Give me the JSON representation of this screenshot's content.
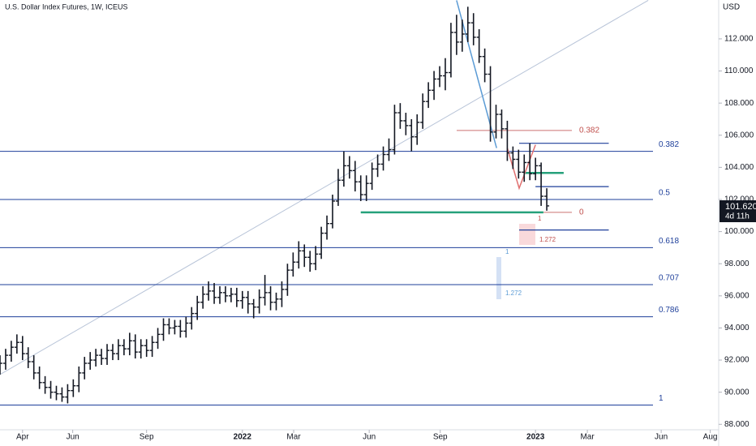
{
  "chart_data": {
    "type": "ohlc",
    "title": "U.S. Dollar Index Futures, 1W, ICEUS",
    "y_axis_label": "USD",
    "last_price": "101.620",
    "countdown": "4d 11h",
    "color": "#131722",
    "xlim": [
      0,
      127.5
    ],
    "ylim": [
      87.66,
      114.42
    ],
    "xticks": [
      {
        "value": 4.0,
        "label": "Apr"
      },
      {
        "value": 12.9,
        "label": "Jun"
      },
      {
        "value": 26.0,
        "label": "Sep"
      },
      {
        "value": 43.0,
        "label": "2022"
      },
      {
        "value": 52.1,
        "label": "Mar"
      },
      {
        "value": 65.5,
        "label": "Jun"
      },
      {
        "value": 78.1,
        "label": "Sep"
      },
      {
        "value": 95.0,
        "label": "2023"
      },
      {
        "value": 104.2,
        "label": "Mar"
      },
      {
        "value": 117.3,
        "label": "Jun"
      },
      {
        "value": 126.0,
        "label": "Aug"
      }
    ],
    "yticks": [
      {
        "value": 88,
        "label": "88.000"
      },
      {
        "value": 90,
        "label": "90.000"
      },
      {
        "value": 92,
        "label": "92.000"
      },
      {
        "value": 94,
        "label": "94.000"
      },
      {
        "value": 96,
        "label": "96.000"
      },
      {
        "value": 98,
        "label": "98.000"
      },
      {
        "value": 100,
        "label": "100.000"
      },
      {
        "value": 102,
        "label": "102.000"
      },
      {
        "value": 104,
        "label": "104.000"
      },
      {
        "value": 106,
        "label": "106.000"
      },
      {
        "value": 108,
        "label": "108.000"
      },
      {
        "value": 110,
        "label": "110.000"
      },
      {
        "value": 112,
        "label": "112.000"
      }
    ],
    "x": [
      0,
      1,
      2,
      3,
      4,
      5,
      6,
      7,
      8,
      9,
      10,
      11,
      12,
      13,
      14,
      15,
      16,
      17,
      18,
      19,
      20,
      21,
      22,
      23,
      24,
      25,
      26,
      27,
      28,
      29,
      30,
      31,
      32,
      33,
      34,
      35,
      36,
      37,
      38,
      39,
      40,
      41,
      42,
      43,
      44,
      45,
      46,
      47,
      48,
      49,
      50,
      51,
      52,
      53,
      54,
      55,
      56,
      57,
      58,
      59,
      60,
      61,
      62,
      63,
      64,
      65,
      66,
      67,
      68,
      69,
      70,
      71,
      72,
      73,
      74,
      75,
      76,
      77,
      78,
      79,
      80,
      81,
      82,
      83,
      84,
      85,
      86,
      87,
      88,
      89,
      90,
      91,
      92,
      93,
      94,
      95,
      96,
      97
    ],
    "open": [
      91.5,
      91.8,
      92.3,
      92.8,
      93.1,
      92.4,
      91.9,
      91.2,
      90.6,
      90.3,
      90.0,
      89.9,
      89.7,
      90.1,
      90.4,
      91.2,
      91.8,
      92.0,
      92.3,
      92.1,
      92.6,
      92.4,
      92.9,
      92.7,
      93.2,
      92.5,
      92.9,
      92.6,
      93.1,
      93.6,
      94.2,
      94.0,
      94.1,
      93.8,
      94.3,
      94.9,
      95.6,
      96.1,
      96.3,
      95.9,
      96.2,
      96.0,
      96.1,
      95.7,
      95.9,
      95.5,
      95.3,
      95.9,
      96.2,
      95.6,
      95.8,
      96.4,
      97.6,
      98.1,
      98.8,
      98.4,
      98.0,
      98.6,
      99.9,
      100.5,
      101.9,
      103.2,
      104.1,
      103.8,
      103.1,
      102.3,
      103.0,
      103.9,
      104.2,
      104.8,
      105.1,
      107.4,
      106.9,
      106.6,
      105.9,
      106.8,
      108.1,
      108.8,
      109.5,
      109.7,
      109.9,
      112.4,
      111.8,
      112.3,
      113.0,
      112.1,
      110.9,
      109.8,
      106.2,
      107.3,
      106.4,
      104.9,
      104.5,
      103.7,
      104.3,
      103.6,
      104.1,
      102.2
    ],
    "high": [
      92.3,
      92.7,
      93.2,
      93.6,
      93.5,
      92.8,
      92.3,
      91.6,
      91.0,
      90.7,
      90.4,
      90.3,
      90.5,
      90.8,
      91.6,
      92.2,
      92.5,
      92.7,
      92.7,
      93.0,
      93.0,
      93.3,
      93.3,
      93.7,
      93.6,
      93.3,
      93.3,
      93.5,
      94.0,
      94.6,
      94.6,
      94.5,
      94.5,
      94.7,
      95.3,
      96.0,
      96.6,
      96.9,
      96.8,
      96.6,
      96.6,
      96.5,
      96.5,
      96.3,
      96.3,
      95.8,
      96.4,
      97.3,
      96.6,
      96.2,
      96.9,
      98.0,
      98.7,
      99.4,
      99.2,
      98.8,
      99.1,
      100.3,
      101.0,
      102.3,
      103.9,
      105.0,
      104.7,
      104.4,
      103.5,
      103.5,
      104.3,
      104.8,
      105.3,
      105.8,
      107.9,
      108.0,
      107.4,
      107.0,
      107.3,
      108.6,
      109.3,
      110.0,
      110.3,
      110.8,
      113.0,
      113.5,
      113.2,
      114.0,
      113.6,
      112.6,
      111.4,
      110.3,
      107.9,
      107.6,
      106.9,
      105.3,
      105.1,
      104.8,
      105.5,
      104.6,
      104.3,
      102.7
    ],
    "low": [
      91.1,
      91.4,
      91.9,
      92.4,
      92.0,
      91.5,
      90.8,
      90.2,
      89.9,
      89.6,
      89.5,
      89.4,
      89.3,
      89.7,
      90.0,
      90.8,
      91.4,
      91.6,
      91.7,
      91.7,
      92.0,
      92.0,
      92.3,
      92.3,
      92.1,
      92.1,
      92.2,
      92.2,
      92.7,
      93.2,
      93.6,
      93.6,
      93.4,
      93.4,
      93.9,
      94.5,
      95.2,
      95.7,
      95.5,
      95.5,
      95.6,
      95.6,
      95.3,
      95.2,
      94.9,
      94.6,
      94.9,
      95.4,
      95.1,
      95.1,
      95.3,
      96.0,
      97.2,
      97.7,
      97.8,
      97.5,
      97.6,
      98.3,
      99.5,
      100.2,
      101.6,
      102.8,
      103.3,
      102.5,
      101.9,
      101.9,
      102.6,
      103.4,
      103.8,
      104.4,
      104.8,
      106.4,
      106.0,
      105.0,
      105.4,
      106.4,
      107.7,
      108.2,
      109.0,
      108.8,
      109.6,
      111.0,
      111.2,
      111.8,
      111.6,
      110.5,
      109.3,
      105.6,
      105.8,
      105.8,
      104.4,
      103.9,
      103.3,
      103.1,
      103.2,
      103.2,
      101.6,
      101.3
    ],
    "close": [
      91.8,
      92.3,
      92.8,
      93.1,
      92.4,
      91.9,
      91.2,
      90.6,
      90.3,
      90.0,
      89.9,
      89.7,
      90.1,
      90.4,
      91.2,
      91.8,
      92.0,
      92.3,
      92.1,
      92.6,
      92.4,
      92.9,
      92.7,
      93.2,
      92.5,
      92.9,
      92.6,
      93.1,
      93.6,
      94.2,
      94.0,
      94.1,
      93.8,
      94.3,
      94.9,
      95.6,
      96.1,
      96.3,
      95.9,
      96.2,
      96.0,
      96.1,
      95.7,
      95.9,
      95.5,
      95.3,
      95.9,
      96.2,
      95.6,
      95.8,
      96.4,
      97.6,
      98.1,
      98.8,
      98.4,
      98.0,
      98.6,
      99.9,
      100.5,
      101.9,
      103.2,
      104.1,
      103.8,
      103.1,
      102.3,
      103.0,
      103.9,
      104.2,
      104.8,
      105.1,
      107.4,
      106.9,
      106.6,
      105.9,
      106.8,
      108.1,
      108.8,
      109.5,
      109.7,
      109.9,
      112.4,
      111.8,
      112.3,
      113.0,
      112.1,
      110.9,
      109.8,
      106.2,
      107.3,
      106.4,
      104.9,
      104.5,
      103.7,
      104.3,
      103.6,
      104.1,
      102.2,
      101.6
    ],
    "fib_levels": [
      {
        "label": "0.382",
        "value": 105.0
      },
      {
        "label": "0.5",
        "value": 102.0
      },
      {
        "label": "0.618",
        "value": 99.0
      },
      {
        "label": "0.707",
        "value": 96.7
      },
      {
        "label": "0.786",
        "value": 94.7
      },
      {
        "label": "1",
        "value": 89.2
      }
    ],
    "fib_color": "#1e3f9a",
    "red_levels": [
      {
        "label": "0.382",
        "value": 106.3
      },
      {
        "label": "0",
        "value": 101.2
      }
    ],
    "red_color": "#c0504d",
    "segments": [
      {
        "x": [
          92.1,
          108.0
        ],
        "value": 105.5,
        "color": "#1e3f9a"
      },
      {
        "x": [
          95.0,
          108.0
        ],
        "value": 102.8,
        "color": "#1e3f9a"
      },
      {
        "x": [
          92.1,
          108.0
        ],
        "value": 100.1,
        "color": "#1e3f9a"
      },
      {
        "x": [
          64.0,
          96.4
        ],
        "value": 101.2,
        "color": "#26a17b"
      },
      {
        "x": [
          93.2,
          100.0
        ],
        "value": 103.65,
        "color": "#26a17b"
      }
    ],
    "trendline": {
      "x": [
        0,
        115.0
      ],
      "y": [
        91.1,
        114.4
      ],
      "color": "#b8c4d8"
    },
    "zigzag_blue": {
      "x": [
        81.0,
        88.1
      ],
      "y": [
        114.4,
        105.2
      ],
      "color": "#5b9bd5"
    },
    "zigzag_red": {
      "x": [
        90.0,
        92.1,
        95.0
      ],
      "y": [
        105.2,
        102.7,
        105.4
      ],
      "color": "#e07070"
    },
    "annotations": [
      "1",
      "1.272",
      "1",
      "1.272"
    ]
  }
}
